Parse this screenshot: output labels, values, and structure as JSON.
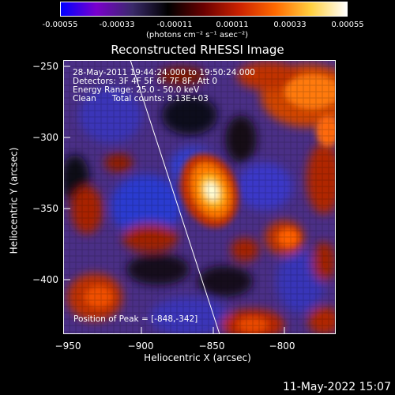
{
  "colorbar": {
    "tick_labels": [
      "-0.00055",
      "-0.00033",
      "-0.00011",
      "0.00011",
      "0.00033",
      "0.00055"
    ],
    "unit_label": "(photons cm⁻² s⁻¹ asec⁻²)"
  },
  "plot": {
    "title": "Reconstructed RHESSI Image",
    "annotation": {
      "time_range": "28-May-2011 19:44:24.000 to 19:50:24.000",
      "detectors": "Detectors: 3F 4F 5F 6F 7F 8F, Att 0",
      "energy": "Energy Range: 25.0 - 50.0 keV",
      "clean": "Clean      Total counts: 8.13E+03",
      "peak": "Position of Peak = [-848,-342]"
    },
    "x_axis": {
      "label": "Heliocentric X (arcsec)",
      "ticks": [
        "−950",
        "−900",
        "−850",
        "−800"
      ],
      "range": [
        -960,
        -785
      ]
    },
    "y_axis": {
      "label": "Heliocentric Y (arcsec)",
      "ticks": [
        "−250",
        "−300",
        "−350",
        "−400"
      ],
      "range": [
        -436,
        -246
      ]
    }
  },
  "footer": {
    "timestamp": "11-May-2022 15:07"
  },
  "colors": {
    "background": "#000000",
    "colormap": [
      "#0000ff",
      "#7a00cc",
      "#3a2a6a",
      "#000000",
      "#6a0000",
      "#cc2200",
      "#ff6a00",
      "#ffd040",
      "#ffffff"
    ]
  }
}
